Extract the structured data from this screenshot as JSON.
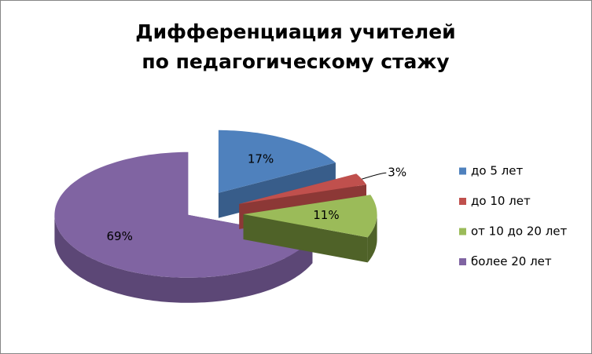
{
  "chart_data": {
    "type": "pie",
    "title": [
      "Дифференциация учителей",
      "по педагогическому стажу"
    ],
    "categories": [
      "до 5 лет",
      "до 10 лет",
      "от 10 до 20 лет",
      "более 20 лет"
    ],
    "values": [
      17,
      3,
      11,
      69
    ],
    "value_labels": [
      "17%",
      "3%",
      "11%",
      "69%"
    ],
    "colors": [
      "#4f81bd",
      "#c0504d",
      "#9bbb59",
      "#8064a2"
    ],
    "side_colors": [
      "#385d8a",
      "#8c3836",
      "#4f6228",
      "#5c4776"
    ],
    "legend": "right"
  }
}
